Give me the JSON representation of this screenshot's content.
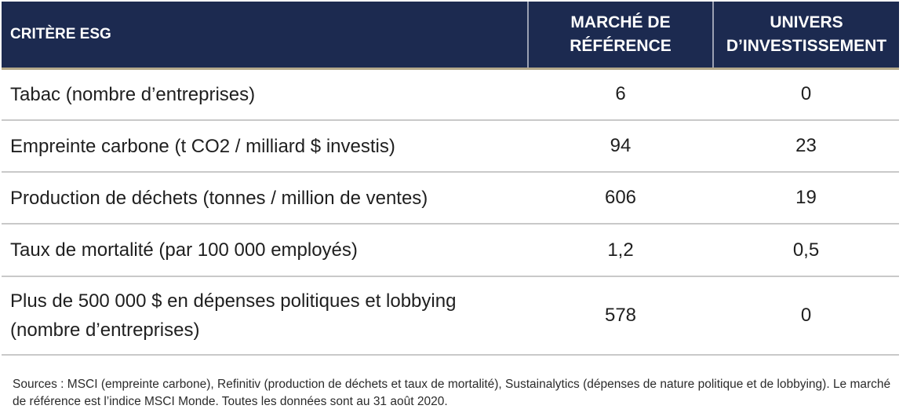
{
  "chart_data": {
    "type": "table",
    "columns": [
      "CRITÈRE ESG",
      "MARCHÉ DE RÉFÉRENCE",
      "UNIVERS D’INVESTISSEMENT"
    ],
    "rows": [
      {
        "criterion": "Tabac (nombre d’entreprises)",
        "benchmark": "6",
        "universe": "0"
      },
      {
        "criterion": "Empreinte carbone (t CO2 / milliard $ investis)",
        "benchmark": "94",
        "universe": "23"
      },
      {
        "criterion": "Production de déchets (tonnes / million de ventes)",
        "benchmark": "606",
        "universe": "19"
      },
      {
        "criterion": "Taux de mortalité (par 100 000 employés)",
        "benchmark": "1,2",
        "universe": "0,5"
      },
      {
        "criterion": "Plus de 500 000 $ en dépenses politiques et lobbying (nombre d’entreprises)",
        "benchmark": "578",
        "universe": "0"
      }
    ],
    "header_color": "#1c2a50"
  },
  "footnote": "Sources : MSCI (empreinte carbone), Refinitiv (production de déchets et taux de mortalité), Sustainalytics (dépenses de nature politique et de lobbying). Le marché de référence est l’indice MSCI Monde. Toutes les données sont au 31 août 2020."
}
